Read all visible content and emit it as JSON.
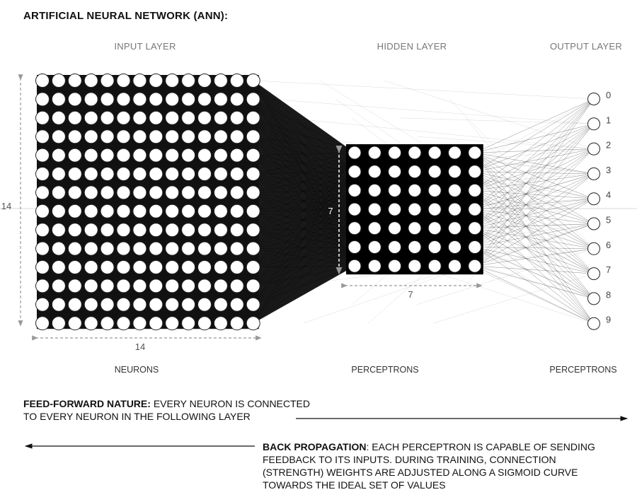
{
  "title": "ARTIFICIAL NEURAL NETWORK (ANN):",
  "layers": {
    "input": {
      "label": "INPUT LAYER",
      "sublabel": "NEURONS",
      "rows": 14,
      "cols": 14,
      "dim_vertical": "14",
      "dim_horizontal": "14"
    },
    "hidden": {
      "label": "HIDDEN LAYER",
      "sublabel": "PERCEPTRONS",
      "rows": 7,
      "cols": 7,
      "dim_vertical": "7",
      "dim_horizontal": "7"
    },
    "output": {
      "label": "OUTPUT LAYER",
      "sublabel": "PERCEPTRONS",
      "nodes": [
        "0",
        "1",
        "2",
        "3",
        "4",
        "5",
        "6",
        "7",
        "8",
        "9"
      ]
    }
  },
  "feed_forward": {
    "heading": "FEED-FORWARD NATURE:",
    "line1": "EVERY NEURON IS CONNECTED",
    "line2": "TO EVERY NEURON IN THE FOLLOWING LAYER"
  },
  "back_propagation": {
    "heading": "BACK PROPAGATION",
    "line1": ": EACH PERCEPTRON IS CAPABLE OF SENDING",
    "line2": "FEEDBACK TO ITS INPUTS.  DURING TRAINING, CONNECTION",
    "line3": "(STRENGTH) WEIGHTS ARE ADJUSTED ALONG A SIGMOID CURVE",
    "line4": "TOWARDS THE IDEAL SET OF VALUES"
  },
  "colors": {
    "node_fill": "#ffffff",
    "node_stroke": "#222222",
    "edge": "#000000",
    "dim_line": "#999999"
  },
  "icons": {
    "forward_arrow": "arrow-right-icon",
    "back_arrow": "arrow-left-icon"
  }
}
